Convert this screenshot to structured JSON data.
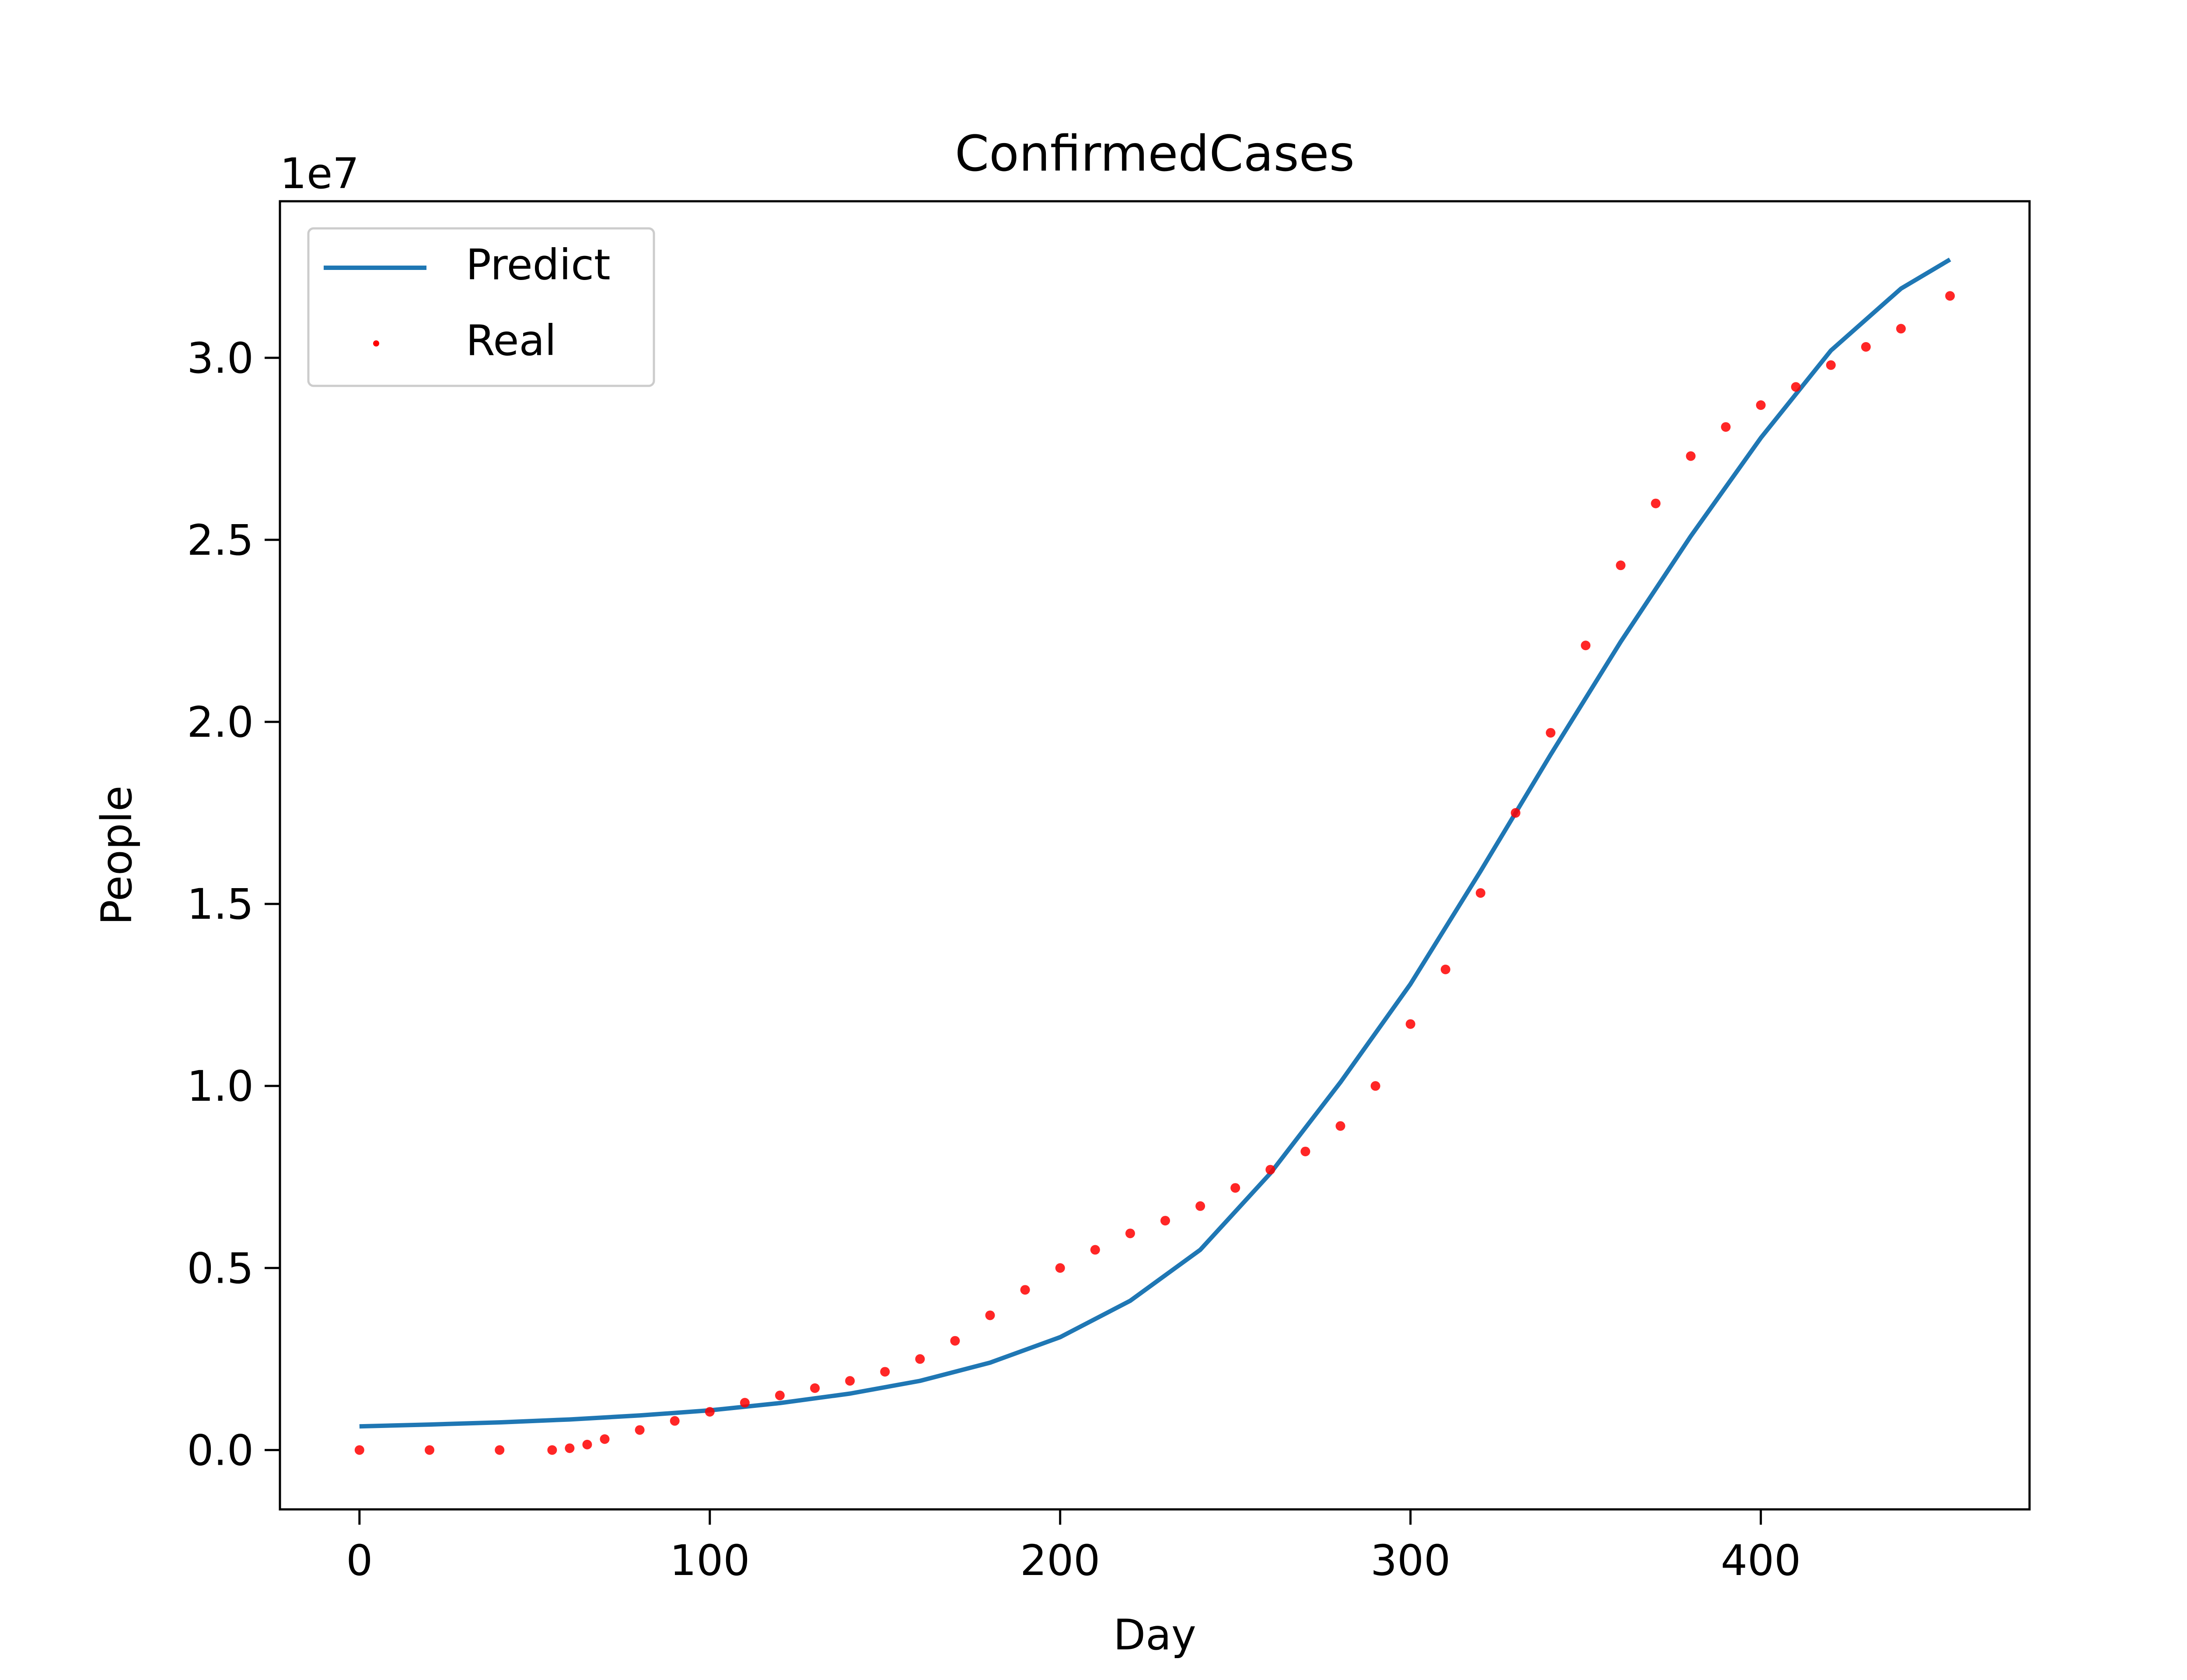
{
  "chart_data": {
    "type": "line",
    "title": "ConfirmedCases",
    "xlabel": "Day",
    "ylabel": "People",
    "y_offset_label": "1e7",
    "xlim": [
      -22.7,
      476.7
    ],
    "ylim": [
      -1630000.0,
      34300000.0
    ],
    "x_ticks": [
      {
        "value": 0,
        "label": "0"
      },
      {
        "value": 100,
        "label": "100"
      },
      {
        "value": 200,
        "label": "200"
      },
      {
        "value": 300,
        "label": "300"
      },
      {
        "value": 400,
        "label": "400"
      }
    ],
    "y_ticks": [
      {
        "value": 0,
        "label": "0.0"
      },
      {
        "value": 5000000,
        "label": "0.5"
      },
      {
        "value": 10000000,
        "label": "1.0"
      },
      {
        "value": 15000000,
        "label": "1.5"
      },
      {
        "value": 20000000,
        "label": "2.0"
      },
      {
        "value": 25000000,
        "label": "2.5"
      },
      {
        "value": 30000000,
        "label": "3.0"
      }
    ],
    "grid": false,
    "legend": {
      "placement": "upper-left",
      "entries": [
        {
          "name": "Predict",
          "style": "line",
          "color": "#1f77b4"
        },
        {
          "name": "Real",
          "style": "marker",
          "color": "#ff0000"
        }
      ]
    },
    "series": [
      {
        "name": "Predict",
        "style": "line",
        "color": "#1f77b4",
        "x": [
          0,
          20,
          40,
          60,
          80,
          100,
          120,
          140,
          160,
          180,
          200,
          220,
          240,
          260,
          280,
          300,
          320,
          340,
          360,
          380,
          400,
          420,
          440,
          454
        ],
        "y": [
          650000,
          700000,
          760000,
          840000,
          950000,
          1090000,
          1290000,
          1550000,
          1900000,
          2400000,
          3100000,
          4100000,
          5500000,
          7600000,
          10100000,
          12800000,
          15900000,
          19100000,
          22200000,
          25100000,
          27800000,
          30200000,
          31900000,
          32700000
        ]
      },
      {
        "name": "Real",
        "style": "scatter",
        "color": "#ff0000",
        "x": [
          0,
          20,
          40,
          55,
          60,
          65,
          70,
          80,
          90,
          100,
          110,
          120,
          130,
          140,
          150,
          160,
          170,
          180,
          190,
          200,
          210,
          220,
          230,
          240,
          250,
          260,
          270,
          280,
          290,
          300,
          310,
          320,
          330,
          340,
          350,
          360,
          370,
          380,
          390,
          400,
          410,
          420,
          430,
          440,
          454
        ],
        "y": [
          0,
          0,
          0,
          0,
          50000,
          150000,
          300000,
          550000,
          800000,
          1050000,
          1300000,
          1500000,
          1700000,
          1900000,
          2150000,
          2500000,
          3000000,
          3700000,
          4400000,
          5000000,
          5500000,
          5950000,
          6300000,
          6700000,
          7200000,
          7700000,
          8200000,
          8900000,
          10000000,
          11700000,
          13200000,
          15300000,
          17500000,
          19700000,
          22100000,
          24300000,
          26000000,
          27300000,
          28100000,
          28700000,
          29200000,
          29800000,
          30300000,
          30800000,
          31700000
        ]
      }
    ]
  }
}
